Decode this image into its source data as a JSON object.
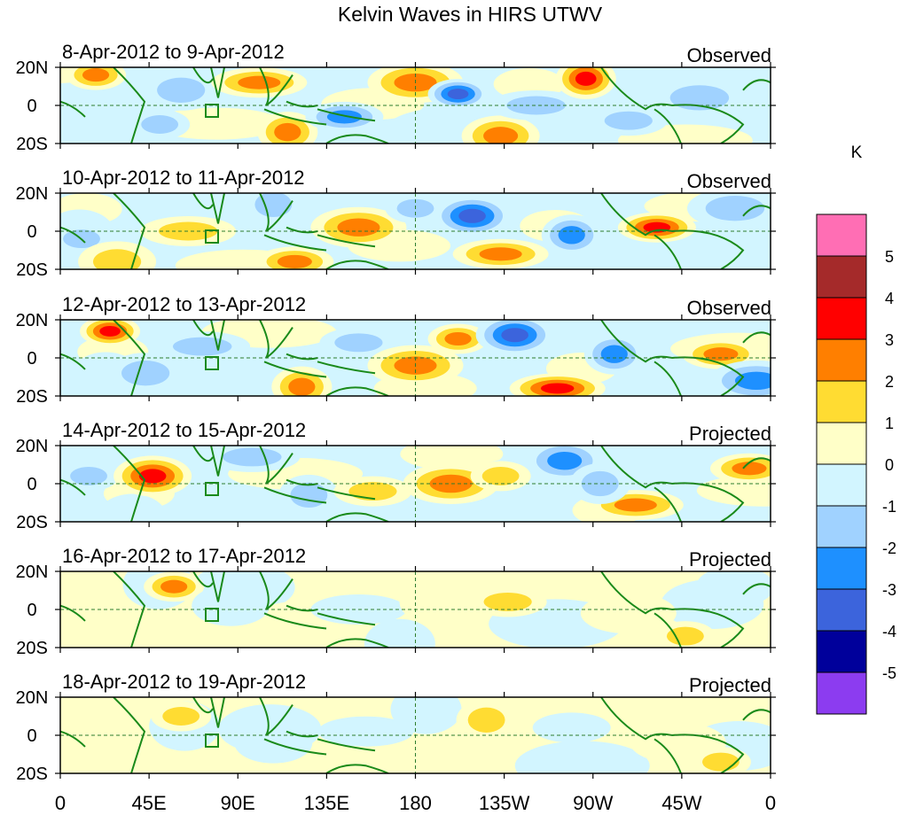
{
  "title": "Kelvin Waves in HIRS UTWV",
  "colorbar": {
    "unit": "K",
    "labels": [
      "5",
      "4",
      "3",
      "2",
      "1",
      "0",
      "-1",
      "-2",
      "-3",
      "-4",
      "-5"
    ],
    "colors": [
      "#ff6eb4",
      "#a52a2a",
      "#ff0000",
      "#ff7f00",
      "#ffdc32",
      "#ffffc8",
      "#d2f5ff",
      "#a0d2ff",
      "#1e90ff",
      "#3c64dc",
      "#00009b",
      "#8c3cf0"
    ]
  },
  "axes": {
    "x_ticks": [
      "0",
      "45E",
      "90E",
      "135E",
      "180",
      "135W",
      "90W",
      "45W",
      "0"
    ],
    "y_ticks": [
      "20N",
      "0",
      "20S"
    ]
  },
  "panels": [
    {
      "date_range": "8-Apr-2012 to 9-Apr-2012",
      "status": "Observed",
      "intensity": 1.0
    },
    {
      "date_range": "10-Apr-2012 to 11-Apr-2012",
      "status": "Observed",
      "intensity": 1.0
    },
    {
      "date_range": "12-Apr-2012 to 13-Apr-2012",
      "status": "Observed",
      "intensity": 0.95
    },
    {
      "date_range": "14-Apr-2012 to 15-Apr-2012",
      "status": "Projected",
      "intensity": 0.7
    },
    {
      "date_range": "16-Apr-2012 to 17-Apr-2012",
      "status": "Projected",
      "intensity": 0.4
    },
    {
      "date_range": "18-Apr-2012 to 19-Apr-2012",
      "status": "Projected",
      "intensity": 0.33
    }
  ]
}
